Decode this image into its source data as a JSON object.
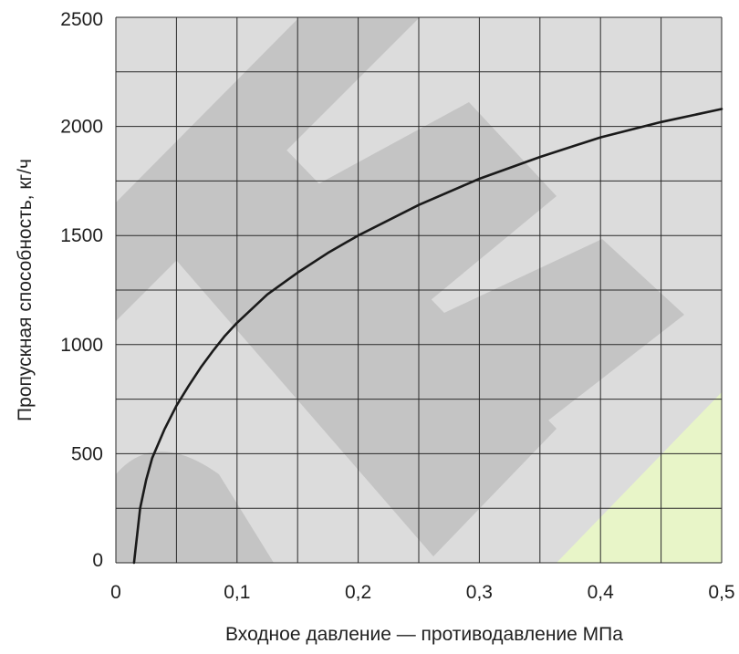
{
  "chart_data": {
    "type": "line",
    "title": "",
    "xlabel": "Входное давление — противодавление МПа",
    "ylabel": "Пропускная способность, кг/ч",
    "xlim": [
      0,
      0.5
    ],
    "ylim": [
      0,
      2500
    ],
    "x_ticks": [
      {
        "value": 0,
        "label": "0"
      },
      {
        "value": 0.1,
        "label": "0,1"
      },
      {
        "value": 0.2,
        "label": "0,2"
      },
      {
        "value": 0.3,
        "label": "0,3"
      },
      {
        "value": 0.4,
        "label": "0,4"
      },
      {
        "value": 0.5,
        "label": "0,5"
      }
    ],
    "y_ticks": [
      {
        "value": 0,
        "label": "0"
      },
      {
        "value": 500,
        "label": "500"
      },
      {
        "value": 1000,
        "label": "1000"
      },
      {
        "value": 1500,
        "label": "1500"
      },
      {
        "value": 2000,
        "label": "2000"
      },
      {
        "value": 2500,
        "label": "2500"
      }
    ],
    "grid": true,
    "grid_x_step": 0.05,
    "grid_y_step": 250,
    "series": [
      {
        "color": "#1a1a1a",
        "x": [
          0.015,
          0.02,
          0.025,
          0.03,
          0.04,
          0.05,
          0.06,
          0.07,
          0.08,
          0.09,
          0.1,
          0.125,
          0.15,
          0.175,
          0.2,
          0.25,
          0.3,
          0.35,
          0.4,
          0.45,
          0.5
        ],
        "y": [
          0,
          250,
          380,
          480,
          610,
          720,
          810,
          895,
          970,
          1040,
          1100,
          1230,
          1330,
          1420,
          1500,
          1640,
          1760,
          1860,
          1950,
          2020,
          2080
        ]
      }
    ]
  },
  "colors": {
    "plot_background": "#dcdcdc",
    "grid": "#2a2a2a",
    "watermark_gray": "#c4c4c4",
    "watermark_green": "#e8f5c8"
  }
}
